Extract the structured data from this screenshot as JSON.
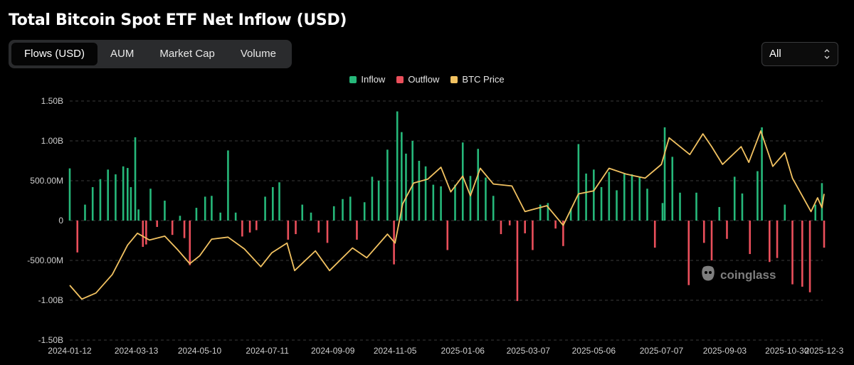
{
  "page": {
    "title": "Total Bitcoin Spot ETF Net Inflow (USD)"
  },
  "tabs": [
    {
      "label": "Flows (USD)",
      "active": true
    },
    {
      "label": "AUM",
      "active": false
    },
    {
      "label": "Market Cap",
      "active": false
    },
    {
      "label": "Volume",
      "active": false
    }
  ],
  "range_select": {
    "value": "All",
    "icon": "chevron-updown-icon"
  },
  "watermark": {
    "text": "coinglass",
    "icon": "coinglass-logo-icon"
  },
  "colors": {
    "inflow": "#26b87a",
    "outflow": "#ea4f5b",
    "price": "#f2c261",
    "grid": "#3a3a3a"
  },
  "chart_data": {
    "type": "bar",
    "title": "Total Bitcoin Spot ETF Net Inflow (USD)",
    "legend": [
      "Inflow",
      "Outflow",
      "BTC Price"
    ],
    "legend_position": "top-center",
    "grid": true,
    "y_ticks": [
      "1.50B",
      "1.00B",
      "500.00M",
      "0",
      "-500.00M",
      "-1.00B",
      "-1.50B"
    ],
    "ylim": [
      -1500000000,
      1500000000
    ],
    "x_ticks": [
      "2024-01-12",
      "2024-03-13",
      "2024-05-10",
      "2024-07-11",
      "2024-09-09",
      "2024-11-05",
      "2025-01-06",
      "2025-03-07",
      "2025-05-06",
      "2025-07-07",
      "2025-09-03",
      "2025-10-30",
      "2025-12-3"
    ],
    "series": [
      {
        "name": "Net Inflow",
        "type": "bar",
        "points": [
          [
            "2024-01-12",
            655
          ],
          [
            "2024-01-19",
            -400
          ],
          [
            "2024-01-26",
            200
          ],
          [
            "2024-02-02",
            420
          ],
          [
            "2024-02-09",
            520
          ],
          [
            "2024-02-16",
            640
          ],
          [
            "2024-02-23",
            580
          ],
          [
            "2024-03-01",
            680
          ],
          [
            "2024-03-05",
            660
          ],
          [
            "2024-03-08",
            420
          ],
          [
            "2024-03-12",
            1045
          ],
          [
            "2024-03-15",
            140
          ],
          [
            "2024-03-19",
            -330
          ],
          [
            "2024-03-22",
            -300
          ],
          [
            "2024-03-26",
            400
          ],
          [
            "2024-04-01",
            -80
          ],
          [
            "2024-04-08",
            250
          ],
          [
            "2024-04-15",
            -180
          ],
          [
            "2024-04-22",
            60
          ],
          [
            "2024-04-26",
            -220
          ],
          [
            "2024-05-01",
            -560
          ],
          [
            "2024-05-07",
            160
          ],
          [
            "2024-05-15",
            300
          ],
          [
            "2024-05-21",
            310
          ],
          [
            "2024-05-29",
            100
          ],
          [
            "2024-06-05",
            880
          ],
          [
            "2024-06-12",
            100
          ],
          [
            "2024-06-18",
            -200
          ],
          [
            "2024-06-25",
            -150
          ],
          [
            "2024-07-01",
            -120
          ],
          [
            "2024-07-09",
            300
          ],
          [
            "2024-07-16",
            420
          ],
          [
            "2024-07-22",
            480
          ],
          [
            "2024-07-30",
            -240
          ],
          [
            "2024-08-06",
            -170
          ],
          [
            "2024-08-12",
            200
          ],
          [
            "2024-08-20",
            100
          ],
          [
            "2024-08-27",
            -150
          ],
          [
            "2024-09-04",
            -280
          ],
          [
            "2024-09-10",
            180
          ],
          [
            "2024-09-18",
            270
          ],
          [
            "2024-09-25",
            300
          ],
          [
            "2024-10-01",
            -240
          ],
          [
            "2024-10-08",
            230
          ],
          [
            "2024-10-15",
            550
          ],
          [
            "2024-10-21",
            500
          ],
          [
            "2024-10-29",
            890
          ],
          [
            "2024-11-04",
            -550
          ],
          [
            "2024-11-07",
            1370
          ],
          [
            "2024-11-11",
            1110
          ],
          [
            "2024-11-15",
            840
          ],
          [
            "2024-11-21",
            1000
          ],
          [
            "2024-11-27",
            750
          ],
          [
            "2024-12-03",
            680
          ],
          [
            "2024-12-10",
            450
          ],
          [
            "2024-12-17",
            430
          ],
          [
            "2024-12-23",
            -370
          ],
          [
            "2024-12-30",
            450
          ],
          [
            "2025-01-06",
            980
          ],
          [
            "2025-01-13",
            560
          ],
          [
            "2025-01-20",
            900
          ],
          [
            "2025-01-27",
            540
          ],
          [
            "2025-02-03",
            310
          ],
          [
            "2025-02-10",
            -170
          ],
          [
            "2025-02-18",
            -60
          ],
          [
            "2025-02-25",
            -1010
          ],
          [
            "2025-03-04",
            -160
          ],
          [
            "2025-03-11",
            -370
          ],
          [
            "2025-03-18",
            200
          ],
          [
            "2025-03-25",
            220
          ],
          [
            "2025-04-01",
            -100
          ],
          [
            "2025-04-08",
            -320
          ],
          [
            "2025-04-15",
            150
          ],
          [
            "2025-04-22",
            960
          ],
          [
            "2025-04-29",
            590
          ],
          [
            "2025-05-06",
            640
          ],
          [
            "2025-05-13",
            420
          ],
          [
            "2025-05-20",
            610
          ],
          [
            "2025-05-27",
            380
          ],
          [
            "2025-06-03",
            590
          ],
          [
            "2025-06-10",
            580
          ],
          [
            "2025-06-17",
            550
          ],
          [
            "2025-06-24",
            400
          ],
          [
            "2025-07-01",
            -340
          ],
          [
            "2025-07-08",
            220
          ],
          [
            "2025-07-10",
            1170
          ],
          [
            "2025-07-17",
            800
          ],
          [
            "2025-07-24",
            350
          ],
          [
            "2025-08-01",
            -810
          ],
          [
            "2025-08-08",
            350
          ],
          [
            "2025-08-15",
            -280
          ],
          [
            "2025-08-22",
            -500
          ],
          [
            "2025-08-29",
            170
          ],
          [
            "2025-09-05",
            -230
          ],
          [
            "2025-09-12",
            550
          ],
          [
            "2025-09-19",
            340
          ],
          [
            "2025-09-26",
            -420
          ],
          [
            "2025-10-03",
            620
          ],
          [
            "2025-10-07",
            1170
          ],
          [
            "2025-10-14",
            -520
          ],
          [
            "2025-10-21",
            -470
          ],
          [
            "2025-10-28",
            200
          ],
          [
            "2025-11-04",
            -800
          ],
          [
            "2025-11-13",
            -830
          ],
          [
            "2025-11-20",
            -900
          ],
          [
            "2025-11-25",
            200
          ],
          [
            "2025-12-01",
            470
          ],
          [
            "2025-12-03",
            -340
          ]
        ]
      },
      {
        "name": "BTC Price",
        "type": "line",
        "points": [
          [
            "2024-01-12",
            46500
          ],
          [
            "2024-01-23",
            39500
          ],
          [
            "2024-02-05",
            42600
          ],
          [
            "2024-02-20",
            52000
          ],
          [
            "2024-03-05",
            67000
          ],
          [
            "2024-03-14",
            73000
          ],
          [
            "2024-03-25",
            69500
          ],
          [
            "2024-04-08",
            71500
          ],
          [
            "2024-04-20",
            64500
          ],
          [
            "2024-05-01",
            57500
          ],
          [
            "2024-05-10",
            61500
          ],
          [
            "2024-05-21",
            70000
          ],
          [
            "2024-06-05",
            71000
          ],
          [
            "2024-06-20",
            65000
          ],
          [
            "2024-07-05",
            56000
          ],
          [
            "2024-07-15",
            63000
          ],
          [
            "2024-07-29",
            68000
          ],
          [
            "2024-08-05",
            54000
          ],
          [
            "2024-08-24",
            64000
          ],
          [
            "2024-09-06",
            54000
          ],
          [
            "2024-09-27",
            65500
          ],
          [
            "2024-10-10",
            60500
          ],
          [
            "2024-10-29",
            72500
          ],
          [
            "2024-11-05",
            68000
          ],
          [
            "2024-11-12",
            88000
          ],
          [
            "2024-11-22",
            98500
          ],
          [
            "2024-12-05",
            100500
          ],
          [
            "2024-12-17",
            106500
          ],
          [
            "2024-12-26",
            94000
          ],
          [
            "2025-01-06",
            102000
          ],
          [
            "2025-01-13",
            92000
          ],
          [
            "2025-01-22",
            106000
          ],
          [
            "2025-02-03",
            98000
          ],
          [
            "2025-02-20",
            97000
          ],
          [
            "2025-03-04",
            84000
          ],
          [
            "2025-03-24",
            87000
          ],
          [
            "2025-04-08",
            77000
          ],
          [
            "2025-04-22",
            93000
          ],
          [
            "2025-05-06",
            94500
          ],
          [
            "2025-05-20",
            106000
          ],
          [
            "2025-06-05",
            103000
          ],
          [
            "2025-06-22",
            101000
          ],
          [
            "2025-07-07",
            108000
          ],
          [
            "2025-07-14",
            121500
          ],
          [
            "2025-08-02",
            113000
          ],
          [
            "2025-08-14",
            123500
          ],
          [
            "2025-08-22",
            117000
          ],
          [
            "2025-09-01",
            108000
          ],
          [
            "2025-09-18",
            117000
          ],
          [
            "2025-09-25",
            109000
          ],
          [
            "2025-10-06",
            125000
          ],
          [
            "2025-10-17",
            107000
          ],
          [
            "2025-10-28",
            114000
          ],
          [
            "2025-11-04",
            101000
          ],
          [
            "2025-11-21",
            84000
          ],
          [
            "2025-11-27",
            91000
          ],
          [
            "2025-12-01",
            86000
          ],
          [
            "2025-12-03",
            93000
          ]
        ]
      }
    ]
  }
}
